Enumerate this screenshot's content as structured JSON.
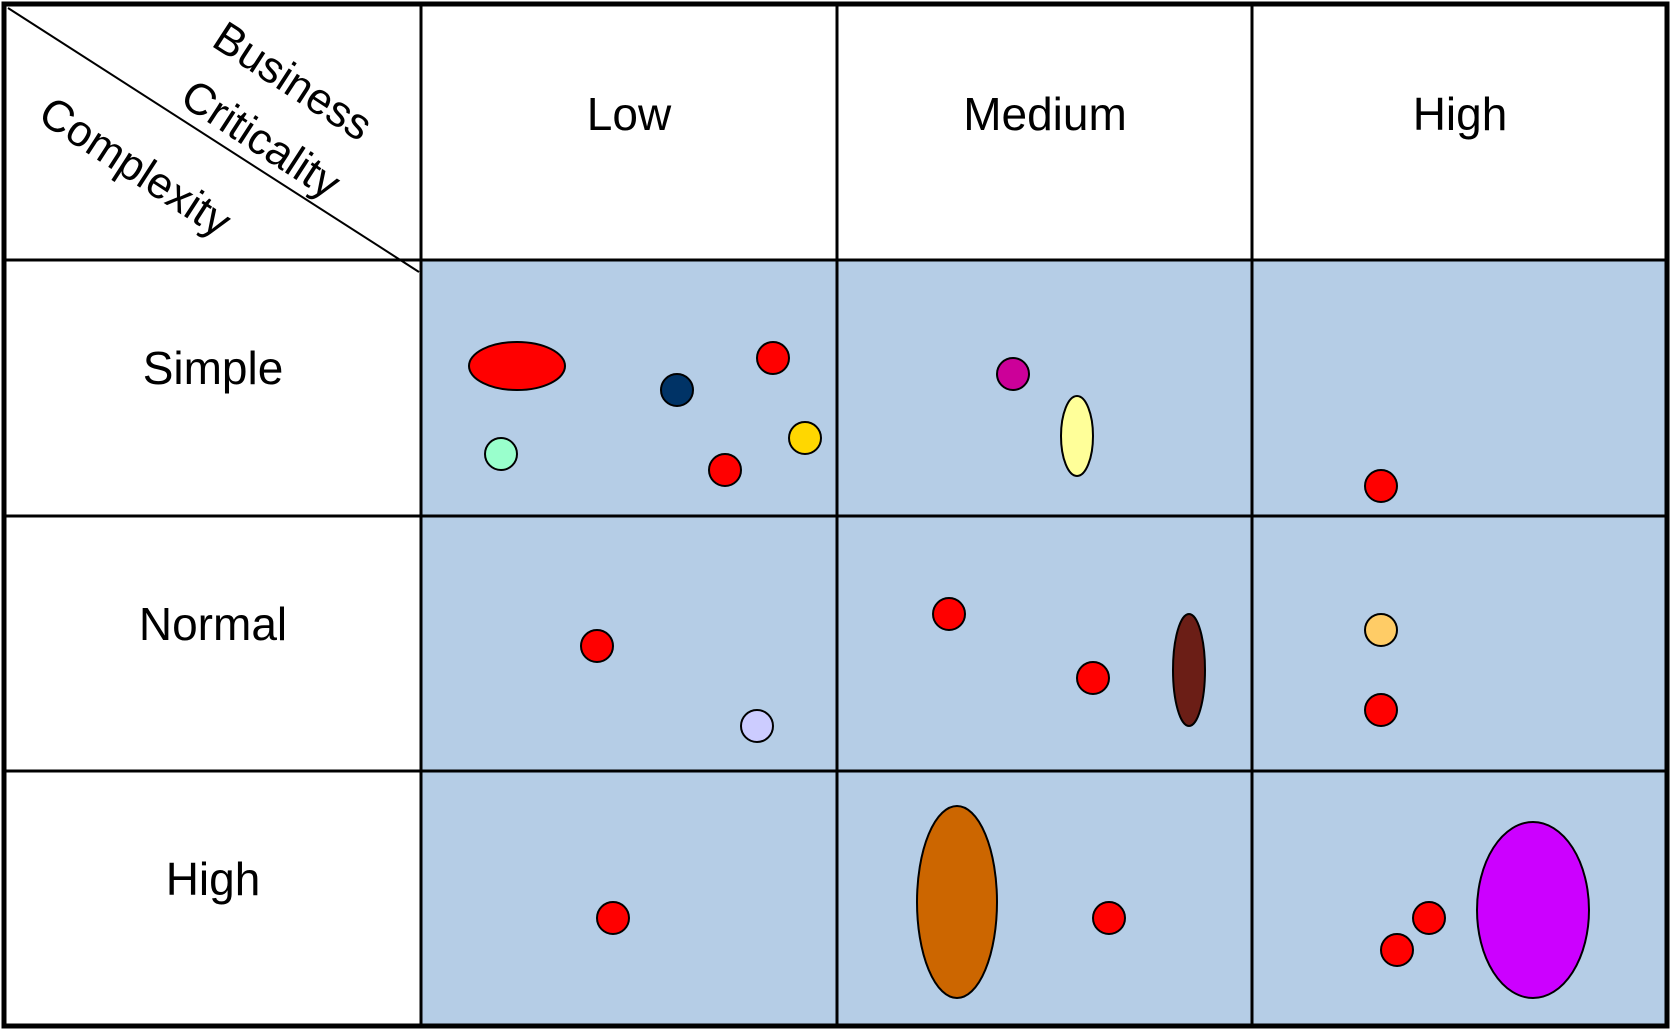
{
  "corner": {
    "column_axis_line1": "Business",
    "column_axis_line2": "Criticality",
    "row_axis": "Complexity"
  },
  "columns": [
    "Low",
    "Medium",
    "High"
  ],
  "rows": [
    "Simple",
    "Normal",
    "High"
  ],
  "cell_fill": "#b5cde6",
  "items": [
    {
      "row": 0,
      "col": 0,
      "color": "#ff0000",
      "shape": "wide-ellipse"
    },
    {
      "row": 0,
      "col": 0,
      "color": "#003366",
      "shape": "circle"
    },
    {
      "row": 0,
      "col": 0,
      "color": "#ff0000",
      "shape": "circle"
    },
    {
      "row": 0,
      "col": 0,
      "color": "#99ffcc",
      "shape": "circle"
    },
    {
      "row": 0,
      "col": 0,
      "color": "#ffd700",
      "shape": "circle"
    },
    {
      "row": 0,
      "col": 0,
      "color": "#ff0000",
      "shape": "circle"
    },
    {
      "row": 0,
      "col": 1,
      "color": "#cc0099",
      "shape": "circle"
    },
    {
      "row": 0,
      "col": 1,
      "color": "#ffff99",
      "shape": "tall-ellipse"
    },
    {
      "row": 0,
      "col": 2,
      "color": "#ff0000",
      "shape": "circle"
    },
    {
      "row": 1,
      "col": 0,
      "color": "#ff0000",
      "shape": "circle"
    },
    {
      "row": 1,
      "col": 0,
      "color": "#ccccff",
      "shape": "circle"
    },
    {
      "row": 1,
      "col": 1,
      "color": "#ff0000",
      "shape": "circle"
    },
    {
      "row": 1,
      "col": 1,
      "color": "#ff0000",
      "shape": "circle"
    },
    {
      "row": 1,
      "col": 1,
      "color": "#6b1e16",
      "shape": "tall-ellipse"
    },
    {
      "row": 1,
      "col": 2,
      "color": "#ffcc66",
      "shape": "circle"
    },
    {
      "row": 1,
      "col": 2,
      "color": "#ff0000",
      "shape": "circle"
    },
    {
      "row": 2,
      "col": 0,
      "color": "#ff0000",
      "shape": "circle"
    },
    {
      "row": 2,
      "col": 1,
      "color": "#cc6600",
      "shape": "large-ellipse"
    },
    {
      "row": 2,
      "col": 1,
      "color": "#ff0000",
      "shape": "circle"
    },
    {
      "row": 2,
      "col": 2,
      "color": "#ff0000",
      "shape": "circle"
    },
    {
      "row": 2,
      "col": 2,
      "color": "#ff0000",
      "shape": "circle"
    },
    {
      "row": 2,
      "col": 2,
      "color": "#cc00ff",
      "shape": "large-ellipse"
    }
  ]
}
